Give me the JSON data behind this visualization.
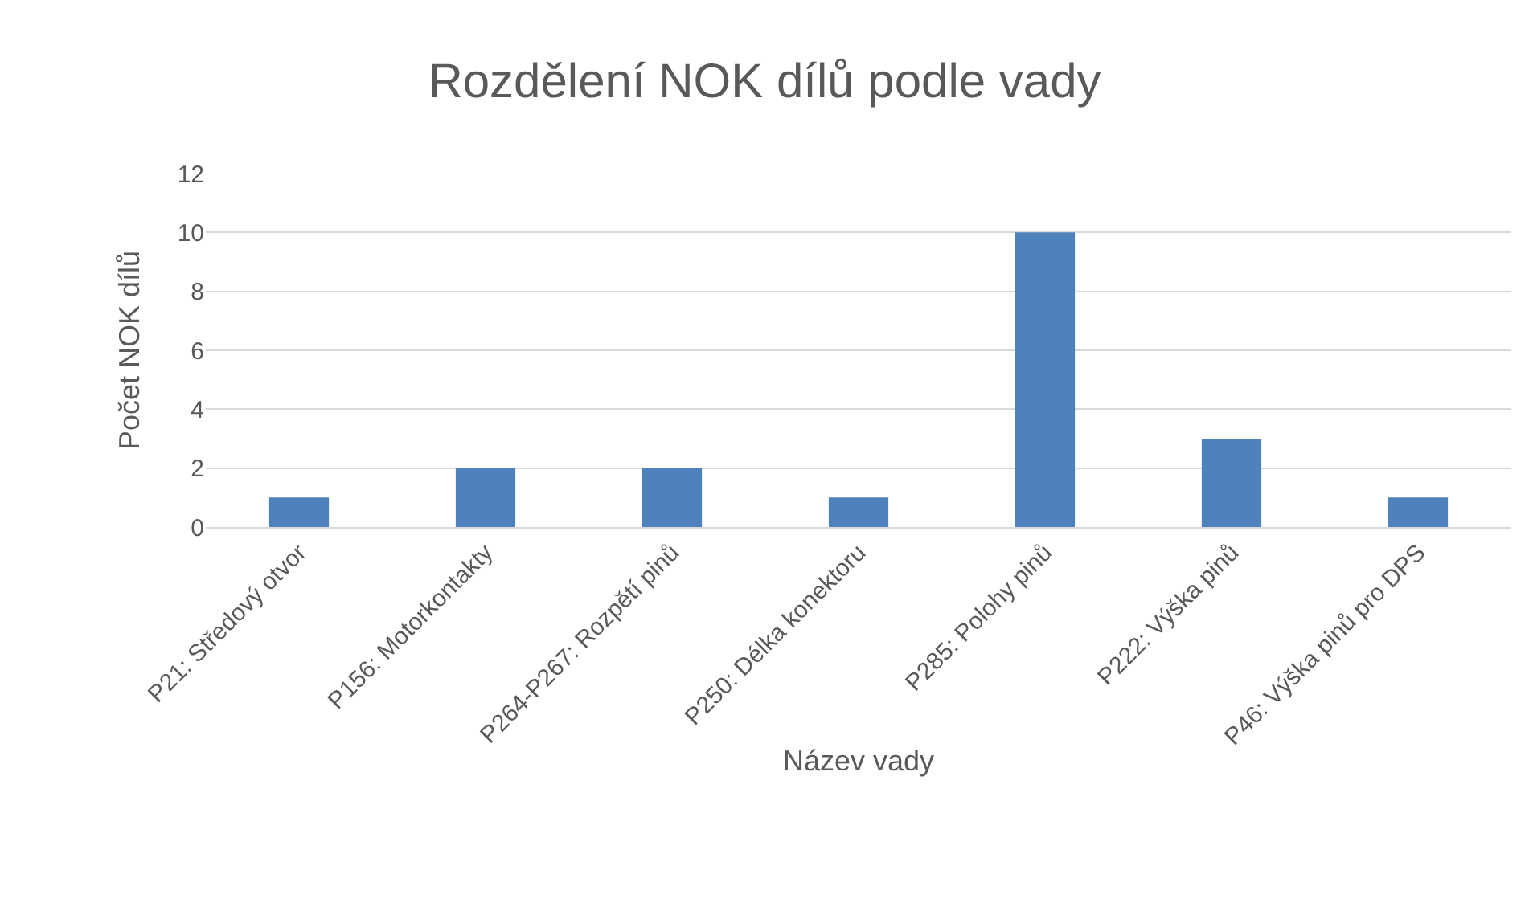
{
  "chart_data": {
    "type": "bar",
    "title": "Rozdělení NOK dílů podle vady",
    "xlabel": "Název vady",
    "ylabel": "Počet NOK dílů",
    "categories": [
      "P21: Středový otvor",
      "P156: Motorkontakty",
      "P264-P267: Rozpětí pinů",
      "P250: Délka konektoru",
      "P285: Polohy pinů",
      "P222: Výška pinů",
      "P46: Výška pinů pro DPS"
    ],
    "values": [
      1,
      2,
      2,
      1,
      10,
      3,
      1
    ],
    "color": "#4f81bd",
    "ylim": [
      0,
      12
    ],
    "yticks": [
      0,
      2,
      4,
      6,
      8,
      10,
      12
    ],
    "grid": "y",
    "legend": false
  }
}
